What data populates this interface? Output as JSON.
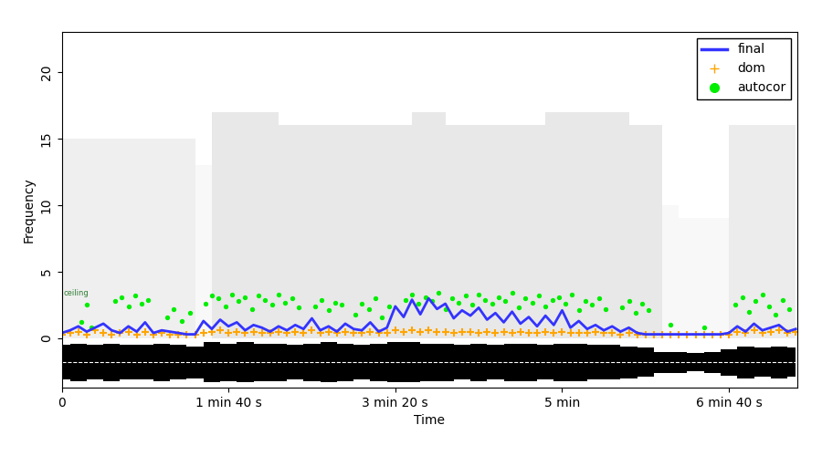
{
  "chart_data": {
    "type": "spectrogram",
    "x_label": "Time",
    "y_label": "Frequency",
    "xlim": [
      0,
      441
    ],
    "ylim": [
      -3.7,
      23
    ],
    "xticks": [
      0,
      {
        "value": 100,
        "label": "1 min 40 s"
      },
      {
        "value": 200,
        "label": "3 min 20 s"
      },
      {
        "value": 300,
        "label": "5 min"
      },
      {
        "value": 400,
        "label": "6 min 40 s"
      }
    ],
    "yticks": [
      0,
      5,
      10,
      15,
      20
    ],
    "legend": "upper right",
    "grid": false,
    "annotations": [
      {
        "text": "ceiling",
        "x": 1,
        "y": 3.4,
        "color": "#2e7d32"
      }
    ],
    "spectrogram": {
      "color": "#808080",
      "x": [
        0,
        10,
        20,
        30,
        40,
        50,
        60,
        70,
        80,
        90,
        100,
        110,
        120,
        130,
        140,
        150,
        160,
        170,
        180,
        190,
        200,
        210,
        220,
        230,
        240,
        250,
        260,
        270,
        280,
        290,
        300,
        310,
        320,
        330,
        340,
        350,
        360,
        370,
        380,
        390,
        400,
        410,
        420,
        430,
        440
      ],
      "top": [
        15,
        15,
        15,
        15,
        15,
        15,
        15,
        15,
        13,
        17,
        17,
        17,
        17,
        16,
        16,
        16,
        16,
        16,
        16,
        16,
        16,
        17,
        17,
        16,
        16,
        16,
        16,
        16,
        16,
        17,
        17,
        17,
        17,
        17,
        16,
        16,
        10,
        9,
        9,
        9,
        16,
        16,
        16,
        16
      ],
      "intensity": [
        0.25,
        0.25,
        0.25,
        0.25,
        0.25,
        0.25,
        0.25,
        0.25,
        0.1,
        0.35,
        0.35,
        0.35,
        0.35,
        0.35,
        0.35,
        0.35,
        0.35,
        0.35,
        0.35,
        0.35,
        0.35,
        0.35,
        0.35,
        0.35,
        0.35,
        0.35,
        0.35,
        0.35,
        0.35,
        0.35,
        0.35,
        0.35,
        0.35,
        0.35,
        0.35,
        0.35,
        0.1,
        0.1,
        0.1,
        0.1,
        0.3,
        0.3,
        0.3,
        0.3
      ]
    },
    "waveform": {
      "color": "#000000",
      "center": -1.8,
      "x": [
        0,
        10,
        20,
        30,
        40,
        50,
        60,
        70,
        80,
        90,
        100,
        110,
        120,
        130,
        140,
        150,
        160,
        170,
        180,
        190,
        200,
        210,
        220,
        230,
        240,
        250,
        260,
        270,
        280,
        290,
        300,
        310,
        320,
        330,
        340,
        350,
        360,
        370,
        380,
        390,
        400,
        410,
        420,
        430,
        440
      ],
      "amplitude": [
        1.3,
        1.4,
        1.3,
        1.4,
        1.3,
        1.3,
        1.4,
        1.3,
        1.2,
        1.5,
        1.4,
        1.5,
        1.4,
        1.4,
        1.3,
        1.4,
        1.5,
        1.4,
        1.3,
        1.4,
        1.5,
        1.5,
        1.4,
        1.4,
        1.3,
        1.4,
        1.3,
        1.4,
        1.4,
        1.3,
        1.4,
        1.4,
        1.3,
        1.3,
        1.2,
        1.1,
        0.8,
        0.8,
        0.7,
        0.8,
        1.0,
        1.2,
        1.1,
        1.2,
        1.1
      ]
    },
    "series": [
      {
        "name": "final",
        "type": "line",
        "color": "#3333ff",
        "x": [
          0,
          5,
          10,
          15,
          20,
          25,
          30,
          35,
          40,
          45,
          50,
          55,
          60,
          65,
          70,
          75,
          80,
          85,
          90,
          95,
          100,
          105,
          110,
          115,
          120,
          125,
          130,
          135,
          140,
          145,
          150,
          155,
          160,
          165,
          170,
          175,
          180,
          185,
          190,
          195,
          200,
          205,
          210,
          215,
          220,
          225,
          230,
          235,
          240,
          245,
          250,
          255,
          260,
          265,
          270,
          275,
          280,
          285,
          290,
          295,
          300,
          305,
          310,
          315,
          320,
          325,
          330,
          335,
          340,
          345,
          350,
          355,
          360,
          365,
          370,
          375,
          380,
          385,
          390,
          395,
          400,
          405,
          410,
          415,
          420,
          425,
          430,
          435,
          440
        ],
        "values": [
          0.4,
          0.6,
          0.9,
          0.5,
          0.8,
          1.1,
          0.6,
          0.4,
          0.9,
          0.5,
          1.2,
          0.4,
          0.6,
          0.5,
          0.4,
          0.3,
          0.3,
          1.3,
          0.7,
          1.4,
          0.9,
          1.2,
          0.6,
          1.0,
          0.8,
          0.5,
          0.9,
          0.6,
          1.0,
          0.7,
          1.5,
          0.6,
          0.9,
          0.5,
          1.1,
          0.7,
          0.6,
          1.2,
          0.5,
          0.8,
          2.4,
          1.6,
          2.9,
          1.8,
          3.0,
          2.2,
          2.6,
          1.5,
          2.1,
          1.7,
          2.3,
          1.4,
          1.9,
          1.2,
          2.0,
          1.1,
          1.6,
          0.9,
          1.7,
          1.0,
          2.1,
          0.8,
          1.3,
          0.7,
          1.0,
          0.6,
          0.9,
          0.5,
          0.8,
          0.4,
          0.3,
          0.3,
          0.3,
          0.3,
          0.3,
          0.3,
          0.3,
          0.3,
          0.3,
          0.3,
          0.4,
          0.9,
          0.5,
          1.1,
          0.6,
          0.8,
          1.0,
          0.5,
          0.7
        ]
      },
      {
        "name": "dom",
        "type": "scatter",
        "marker": "plus",
        "color": "#ffa500",
        "x": [
          0,
          5,
          10,
          15,
          20,
          25,
          30,
          35,
          40,
          45,
          50,
          55,
          60,
          65,
          70,
          75,
          80,
          85,
          90,
          95,
          100,
          105,
          110,
          115,
          120,
          125,
          130,
          135,
          140,
          145,
          150,
          155,
          160,
          165,
          170,
          175,
          180,
          185,
          190,
          195,
          200,
          205,
          210,
          215,
          220,
          225,
          230,
          235,
          240,
          245,
          250,
          255,
          260,
          265,
          270,
          275,
          280,
          285,
          290,
          295,
          300,
          305,
          310,
          315,
          320,
          325,
          330,
          335,
          340,
          345,
          350,
          355,
          360,
          365,
          370,
          375,
          380,
          385,
          390,
          395,
          400,
          405,
          410,
          415,
          420,
          425,
          430,
          435,
          440
        ],
        "values": [
          0.3,
          0.4,
          0.5,
          0.3,
          0.6,
          0.4,
          0.3,
          0.4,
          0.5,
          0.3,
          0.5,
          0.3,
          0.4,
          0.3,
          0.3,
          0.3,
          0.3,
          0.4,
          0.5,
          0.6,
          0.4,
          0.5,
          0.4,
          0.5,
          0.4,
          0.4,
          0.5,
          0.4,
          0.5,
          0.4,
          0.6,
          0.4,
          0.5,
          0.4,
          0.5,
          0.4,
          0.4,
          0.5,
          0.4,
          0.4,
          0.6,
          0.5,
          0.6,
          0.5,
          0.6,
          0.5,
          0.5,
          0.4,
          0.5,
          0.5,
          0.4,
          0.5,
          0.4,
          0.5,
          0.4,
          0.5,
          0.4,
          0.4,
          0.5,
          0.4,
          0.5,
          0.4,
          0.4,
          0.4,
          0.5,
          0.4,
          0.4,
          0.3,
          0.4,
          0.3,
          0.3,
          0.3,
          0.3,
          0.3,
          0.3,
          0.3,
          0.3,
          0.3,
          0.3,
          0.3,
          0.3,
          0.5,
          0.4,
          0.6,
          0.4,
          0.5,
          0.6,
          0.4,
          0.5
        ]
      },
      {
        "name": "autocor",
        "type": "scatter",
        "marker": "dot",
        "color": "#00ee00",
        "x": [
          12,
          15,
          18,
          32,
          36,
          40,
          44,
          48,
          52,
          63,
          67,
          72,
          77,
          86,
          90,
          94,
          98,
          102,
          106,
          110,
          114,
          118,
          122,
          126,
          130,
          134,
          138,
          142,
          152,
          156,
          160,
          164,
          168,
          176,
          180,
          184,
          188,
          192,
          196,
          206,
          210,
          214,
          218,
          222,
          226,
          230,
          234,
          238,
          242,
          246,
          250,
          254,
          258,
          262,
          266,
          270,
          274,
          278,
          282,
          286,
          290,
          294,
          298,
          302,
          306,
          310,
          314,
          318,
          322,
          326,
          336,
          340,
          344,
          348,
          352,
          365,
          385,
          404,
          408,
          412,
          416,
          420,
          424,
          428,
          432,
          436
        ],
        "values": [
          1.2,
          2.5,
          0.8,
          2.8,
          3.1,
          2.4,
          3.2,
          2.6,
          2.9,
          1.6,
          2.2,
          1.3,
          1.9,
          2.6,
          3.2,
          3.0,
          2.4,
          3.3,
          2.8,
          3.1,
          2.2,
          3.2,
          2.9,
          2.5,
          3.3,
          2.7,
          3.0,
          2.3,
          2.4,
          2.9,
          2.1,
          2.7,
          2.5,
          1.8,
          2.6,
          2.2,
          3.0,
          1.6,
          2.4,
          2.9,
          3.3,
          2.6,
          3.1,
          2.8,
          3.4,
          2.2,
          3.0,
          2.7,
          3.2,
          2.5,
          3.3,
          2.9,
          2.6,
          3.1,
          2.8,
          3.4,
          2.3,
          3.0,
          2.7,
          3.2,
          2.4,
          2.9,
          3.1,
          2.6,
          3.3,
          2.1,
          2.8,
          2.5,
          3.0,
          2.2,
          2.3,
          2.8,
          1.9,
          2.6,
          2.1,
          1.0,
          0.8,
          2.5,
          3.1,
          2.0,
          2.8,
          3.3,
          2.4,
          1.8,
          2.9,
          2.2
        ]
      }
    ]
  }
}
